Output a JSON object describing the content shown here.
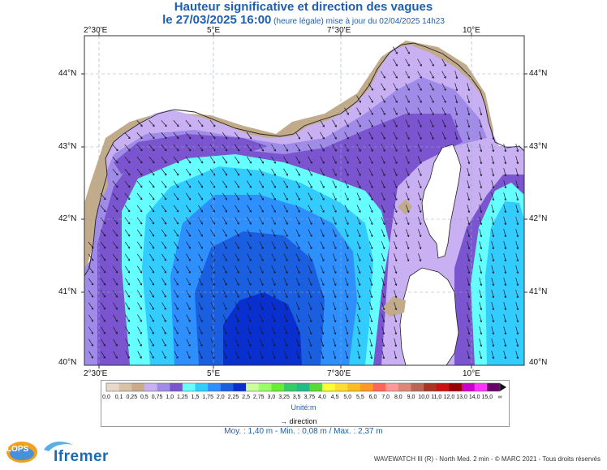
{
  "title_line1": "Hauteur significative et direction des vagues",
  "title_line2_main": "le 27/03/2025 16:00",
  "title_line2_sub": " (heure légale) mise à jour du 02/04/2025 14h23",
  "lon_labels": [
    "2°30'E",
    "5°E",
    "7°30'E",
    "10°E"
  ],
  "lat_labels": [
    "44°N",
    "43°N",
    "42°N",
    "41°N",
    "40°N"
  ],
  "legend": {
    "labels": [
      "0,0",
      "0,1",
      "0,25",
      "0,5",
      "0,75",
      "1,0",
      "1,25",
      "1,5",
      "1,75",
      "2,0",
      "2,25",
      "2,5",
      "2,75",
      "3,0",
      "3,25",
      "3,5",
      "3,75",
      "4,0",
      "4,5",
      "5,0",
      "5,5",
      "6,0",
      "7,0",
      "8,0",
      "9,0",
      "10,0",
      "11,0",
      "12,0",
      "13,0",
      "14,0",
      "15,0",
      "∞"
    ],
    "colors": [
      "#e8d9c8",
      "#d9c1a6",
      "#c9ab8c",
      "#c8b0f2",
      "#a18be8",
      "#7a55cf",
      "#66ffff",
      "#33ccff",
      "#2e8fff",
      "#1a5fe0",
      "#0a2fcf",
      "#ccff99",
      "#99ff66",
      "#66ee33",
      "#33cc66",
      "#22bb88",
      "#55dd33",
      "#ffff33",
      "#ffdd33",
      "#ffbb22",
      "#ff9922",
      "#ff6655",
      "#ff9999",
      "#dd8877",
      "#bb6655",
      "#aa3322",
      "#cc1111",
      "#990000",
      "#cc00cc",
      "#ff33ff",
      "#660066"
    ],
    "unit": "Unité:m",
    "direction_label": "direction"
  },
  "stats": "Moy. : 1,40 m  -  Min. : 0,08 m / Max. : 2,37 m",
  "credit": "WAVEWATCH III (R) - North Med. 2 min - © MARC 2021 - Tous droits réservés",
  "logo_ifremer": "Ifremer",
  "logo_lops": "LOPS",
  "colors": {
    "land": "#b8a48a",
    "very_low": "#c8b0f2",
    "low": "#a18be8",
    "med_low": "#7a55cf",
    "cyan": "#66ffff",
    "sky": "#33ccff",
    "blue": "#2e8fff",
    "deep": "#1a5fe0",
    "deepest": "#0a2fcf",
    "title": "#1f5fae"
  }
}
